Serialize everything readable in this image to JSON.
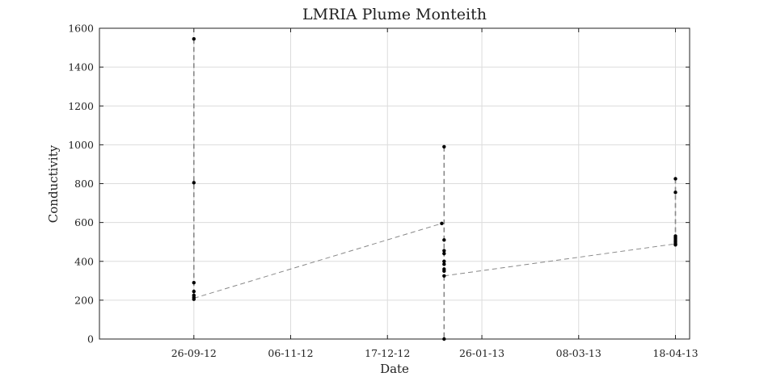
{
  "chart_data": {
    "type": "scatter",
    "title": "LMRIA Plume Monteith",
    "xlabel": "Date",
    "ylabel": "Conductivity",
    "xlim": [
      "2012-08-17",
      "2013-04-24"
    ],
    "ylim": [
      0,
      1600
    ],
    "x_ticks": [
      {
        "date": "2012-09-26",
        "label": "26-09-12"
      },
      {
        "date": "2012-11-06",
        "label": "06-11-12"
      },
      {
        "date": "2012-12-17",
        "label": "17-12-12"
      },
      {
        "date": "2013-01-26",
        "label": "26-01-13"
      },
      {
        "date": "2013-03-08",
        "label": "08-03-13"
      },
      {
        "date": "2013-04-18",
        "label": "18-04-13"
      }
    ],
    "y_ticks": [
      0,
      200,
      400,
      600,
      800,
      1000,
      1200,
      1400,
      1600
    ],
    "grid": true,
    "series": [
      {
        "points": [
          {
            "x": "2012-09-26",
            "y": 1545
          },
          {
            "x": "2012-09-26",
            "y": 805
          },
          {
            "x": "2012-09-26",
            "y": 290
          },
          {
            "x": "2012-09-26",
            "y": 245
          },
          {
            "x": "2012-09-26",
            "y": 225
          },
          {
            "x": "2012-09-26",
            "y": 215
          },
          {
            "x": "2012-09-26",
            "y": 205
          },
          {
            "x": "2013-01-09",
            "y": 595
          },
          {
            "x": "2013-01-10",
            "y": 990
          },
          {
            "x": "2013-01-10",
            "y": 510
          },
          {
            "x": "2013-01-10",
            "y": 455
          },
          {
            "x": "2013-01-10",
            "y": 440
          },
          {
            "x": "2013-01-10",
            "y": 400
          },
          {
            "x": "2013-01-10",
            "y": 385
          },
          {
            "x": "2013-01-10",
            "y": 360
          },
          {
            "x": "2013-01-10",
            "y": 350
          },
          {
            "x": "2013-01-10",
            "y": 325
          },
          {
            "x": "2013-01-10",
            "y": 0
          },
          {
            "x": "2013-04-18",
            "y": 825
          },
          {
            "x": "2013-04-18",
            "y": 755
          },
          {
            "x": "2013-04-18",
            "y": 530
          },
          {
            "x": "2013-04-18",
            "y": 520
          },
          {
            "x": "2013-04-18",
            "y": 510
          },
          {
            "x": "2013-04-18",
            "y": 500
          },
          {
            "x": "2013-04-18",
            "y": 490
          },
          {
            "x": "2013-04-18",
            "y": 485
          }
        ],
        "trend_line": [
          {
            "x": "2012-09-26",
            "y": 210
          },
          {
            "x": "2013-01-09",
            "y": 595
          }
        ],
        "trend_line_2": [
          {
            "x": "2013-01-10",
            "y": 325
          },
          {
            "x": "2013-04-18",
            "y": 490
          }
        ],
        "color": "#000000",
        "line_color": "#888888"
      }
    ]
  }
}
